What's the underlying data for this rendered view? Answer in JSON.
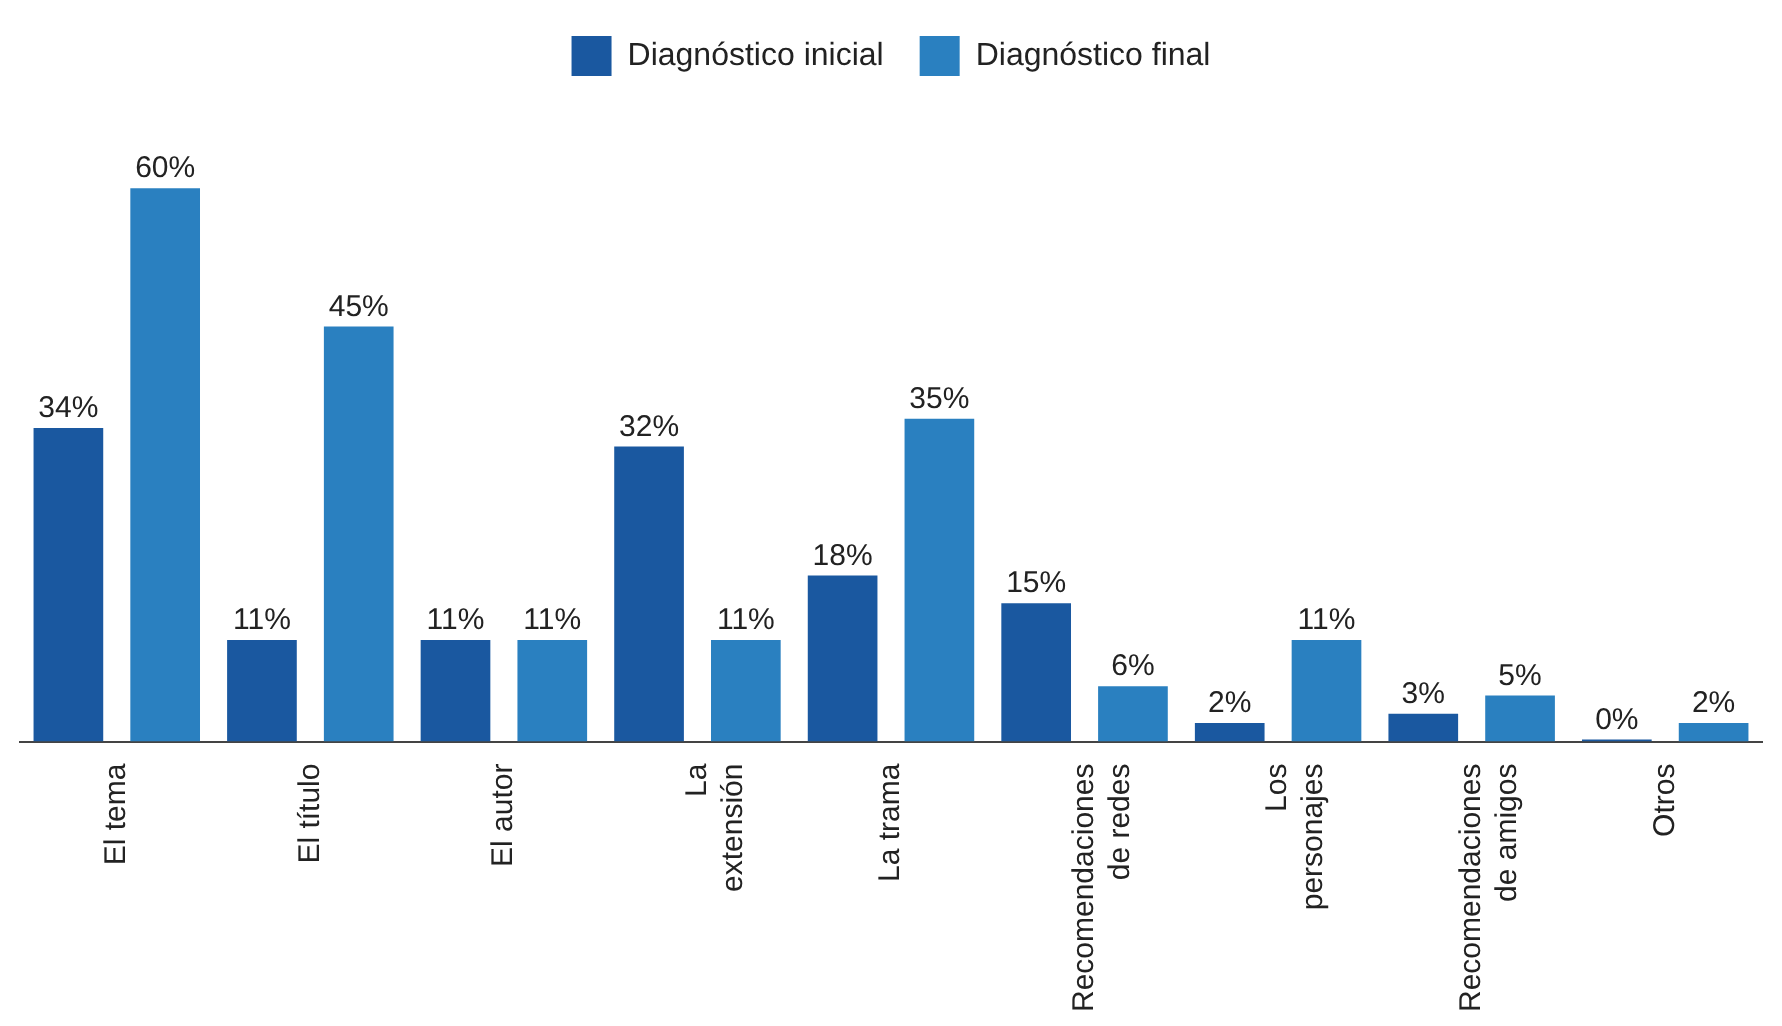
{
  "chart_data": {
    "type": "bar",
    "categories": [
      "El tema",
      "El título",
      "El autor",
      "La extensión",
      "La trama",
      "Recomendaciones de redes",
      "Los personajes",
      "Recomendaciones de amigos",
      "Otros"
    ],
    "series": [
      {
        "name": "Diagnóstico inicial",
        "color": "#1a58a0",
        "values": [
          34,
          11,
          11,
          32,
          18,
          15,
          2,
          3,
          0
        ],
        "value_labels": [
          "34%",
          "11%",
          "11%",
          "32%",
          "18%",
          "15%",
          "2%",
          "3%",
          "0%"
        ]
      },
      {
        "name": "Diagnóstico final",
        "color": "#2a80c0",
        "values": [
          60,
          45,
          11,
          11,
          35,
          6,
          11,
          5,
          2
        ],
        "value_labels": [
          "60%",
          "45%",
          "11%",
          "11%",
          "35%",
          "6%",
          "11%",
          "5%",
          "2%"
        ]
      }
    ],
    "legend": "top",
    "grid": false,
    "tick_labels": "x"
  }
}
